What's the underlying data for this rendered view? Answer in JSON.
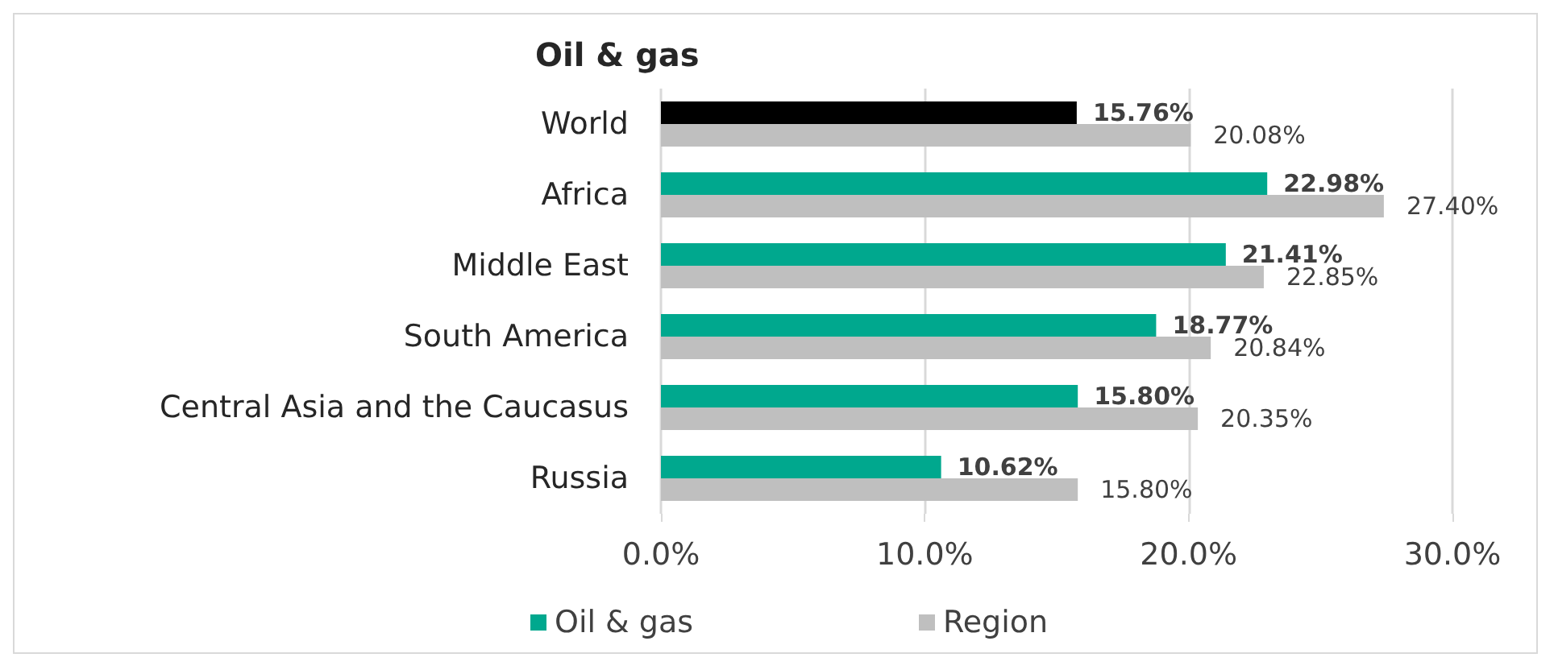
{
  "chart_data": {
    "type": "bar",
    "orientation": "horizontal",
    "title": "Oil & gas",
    "categories": [
      "World",
      "Africa",
      "Middle East",
      "South America",
      "Central Asia and the Caucasus",
      "Russia"
    ],
    "series": [
      {
        "name": "Oil & gas",
        "color": "#00a88e",
        "colors": [
          "#000000",
          "#00a88e",
          "#00a88e",
          "#00a88e",
          "#00a88e",
          "#00a88e"
        ],
        "values": [
          15.76,
          22.98,
          21.41,
          18.77,
          15.8,
          10.62
        ],
        "value_labels": [
          "15.76%",
          "22.98%",
          "21.41%",
          "18.77%",
          "15.80%",
          "10.62%"
        ]
      },
      {
        "name": "Region",
        "color": "#bfbfbf",
        "values": [
          20.08,
          27.4,
          22.85,
          20.84,
          20.35,
          15.8
        ],
        "value_labels": [
          "20.08%",
          "27.40%",
          "22.85%",
          "20.84%",
          "20.35%",
          "15.80%"
        ]
      }
    ],
    "xlim": [
      0,
      30
    ],
    "xticks": [
      {
        "value": 0,
        "label": "0.0%"
      },
      {
        "value": 10,
        "label": "10.0%"
      },
      {
        "value": 20,
        "label": "20.0%"
      },
      {
        "value": 30,
        "label": "30.0%"
      }
    ],
    "grid": "x",
    "legend": "bottom left"
  }
}
